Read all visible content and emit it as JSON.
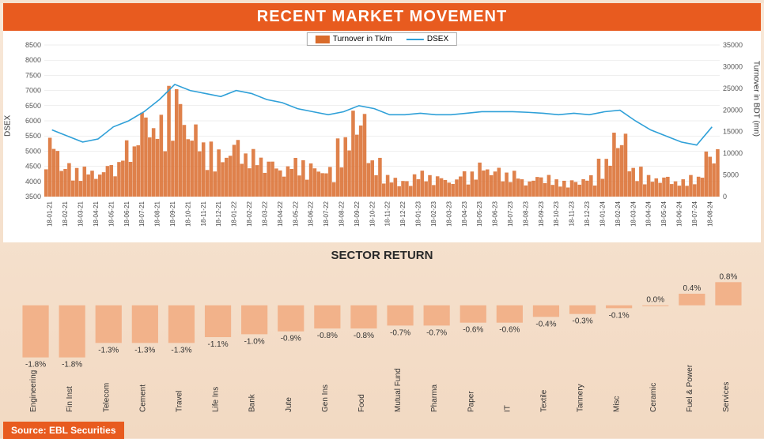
{
  "title": "RECENT MARKET MOVEMENT",
  "subtitle": "SECTOR RETURN",
  "source": "Source: EBL Securities",
  "colors": {
    "brand": "#e85b1f",
    "bar": "#d96b2b",
    "line": "#2fa0d8",
    "sector_bar": "#f2b28a",
    "panel_bg": "#ffffff",
    "page_bg": "#f5e2d0",
    "grid": "#dddddd",
    "text": "#333333"
  },
  "main_chart": {
    "type": "combo-bar-line",
    "legend": {
      "bar": "Turnover in Tk/m",
      "line": "DSEX"
    },
    "y_left": {
      "label": "DSEX",
      "min": 3500,
      "max": 8500,
      "step": 500
    },
    "y_right": {
      "label": "Turnover in BDT (mn)",
      "min": 0,
      "max": 35000,
      "step": 5000
    },
    "x_labels": [
      "18-01-21",
      "18-02-21",
      "18-03-21",
      "18-04-21",
      "18-05-21",
      "18-06-21",
      "18-07-21",
      "18-08-21",
      "18-09-21",
      "18-10-21",
      "18-11-21",
      "18-12-21",
      "18-01-22",
      "18-02-22",
      "18-03-22",
      "18-04-22",
      "18-05-22",
      "18-06-22",
      "18-07-22",
      "18-08-22",
      "18-09-22",
      "18-10-22",
      "18-11-22",
      "18-12-22",
      "18-01-23",
      "18-02-23",
      "18-03-23",
      "18-04-23",
      "18-05-23",
      "18-06-23",
      "18-07-23",
      "18-08-23",
      "18-09-23",
      "18-10-23",
      "18-11-23",
      "18-12-23",
      "18-01-24",
      "18-02-24",
      "18-03-24",
      "18-04-24",
      "18-05-24",
      "18-06-24",
      "18-07-24",
      "18-08-24"
    ],
    "turnover": [
      14000,
      8000,
      7000,
      6000,
      8000,
      13000,
      21000,
      19000,
      26000,
      17000,
      13000,
      11000,
      14000,
      11000,
      9000,
      7000,
      9000,
      8000,
      7000,
      14000,
      20000,
      9000,
      5000,
      4000,
      6000,
      5000,
      4000,
      6000,
      8000,
      7000,
      6000,
      4000,
      5000,
      4000,
      4000,
      5000,
      9000,
      15000,
      7000,
      5000,
      5000,
      4000,
      5000,
      11000
    ],
    "dsex": [
      5700,
      5500,
      5300,
      5400,
      5800,
      6000,
      6300,
      6700,
      7200,
      7000,
      6900,
      6800,
      7000,
      6900,
      6700,
      6600,
      6400,
      6300,
      6200,
      6300,
      6500,
      6400,
      6200,
      6200,
      6250,
      6200,
      6200,
      6250,
      6300,
      6300,
      6300,
      6280,
      6250,
      6200,
      6250,
      6200,
      6300,
      6350,
      6000,
      5700,
      5500,
      5300,
      5200,
      5800
    ]
  },
  "sector_chart": {
    "type": "bar",
    "value_range": [
      -2.0,
      1.0
    ],
    "bar_color": "#f2b28a",
    "sectors": [
      {
        "name": "Engineering",
        "value": -1.8
      },
      {
        "name": "Fin Inst",
        "value": -1.8
      },
      {
        "name": "Telecom",
        "value": -1.3
      },
      {
        "name": "Cement",
        "value": -1.3
      },
      {
        "name": "Travel",
        "value": -1.3
      },
      {
        "name": "Life Ins",
        "value": -1.1
      },
      {
        "name": "Bank",
        "value": -1.0
      },
      {
        "name": "Jute",
        "value": -0.9
      },
      {
        "name": "Gen Ins",
        "value": -0.8
      },
      {
        "name": "Food",
        "value": -0.8
      },
      {
        "name": "Mutual Fund",
        "value": -0.7
      },
      {
        "name": "Pharma",
        "value": -0.7
      },
      {
        "name": "Paper",
        "value": -0.6
      },
      {
        "name": "IT",
        "value": -0.6
      },
      {
        "name": "Textile",
        "value": -0.4
      },
      {
        "name": "Tannery",
        "value": -0.3
      },
      {
        "name": "Misc",
        "value": -0.1
      },
      {
        "name": "Ceramic",
        "value": 0.0
      },
      {
        "name": "Fuel & Power",
        "value": 0.4
      },
      {
        "name": "Services",
        "value": 0.8
      }
    ]
  }
}
